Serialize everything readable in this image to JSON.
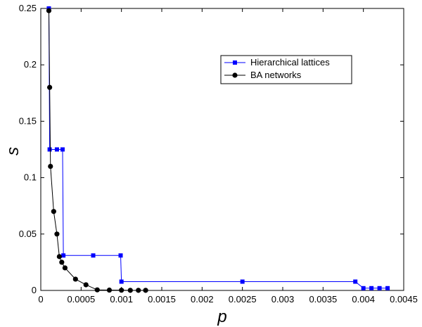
{
  "chart_data": {
    "type": "line",
    "xlabel": "p",
    "ylabel": "s",
    "xlim": [
      0,
      0.0045
    ],
    "ylim": [
      0,
      0.25
    ],
    "x_ticks": [
      "0",
      "0.0005",
      "0.001",
      "0.0015",
      "0.002",
      "0.0025",
      "0.003",
      "0.0035",
      "0.004",
      "0.0045"
    ],
    "y_ticks": [
      "0",
      "0.05",
      "0.1",
      "0.15",
      "0.2",
      "0.25"
    ],
    "grid": false,
    "legend_position": "top-right",
    "series": [
      {
        "name": "Hierarchical lattices",
        "color": "#0000ff",
        "marker": "square",
        "x": [
          0.0001,
          0.00011,
          0.0002,
          0.00027,
          0.00028,
          0.00065,
          0.00099,
          0.001,
          0.0025,
          0.0039,
          0.004,
          0.0041,
          0.0042,
          0.0043
        ],
        "y": [
          0.25,
          0.125,
          0.125,
          0.125,
          0.031,
          0.031,
          0.031,
          0.0078,
          0.0078,
          0.0078,
          0.002,
          0.002,
          0.002,
          0.002
        ]
      },
      {
        "name": "BA networks",
        "color": "#000000",
        "marker": "circle",
        "x": [
          0.0001,
          0.00011,
          0.00012,
          0.00016,
          0.0002,
          0.00023,
          0.00026,
          0.0003,
          0.00043,
          0.00056,
          0.0007,
          0.00085,
          0.001,
          0.00111,
          0.00121,
          0.0013
        ],
        "y": [
          0.248,
          0.18,
          0.11,
          0.07,
          0.05,
          0.03,
          0.025,
          0.02,
          0.01,
          0.005,
          0.0005,
          0.0003,
          0.0002,
          0.0001,
          0.0001,
          0.0001
        ]
      }
    ]
  }
}
